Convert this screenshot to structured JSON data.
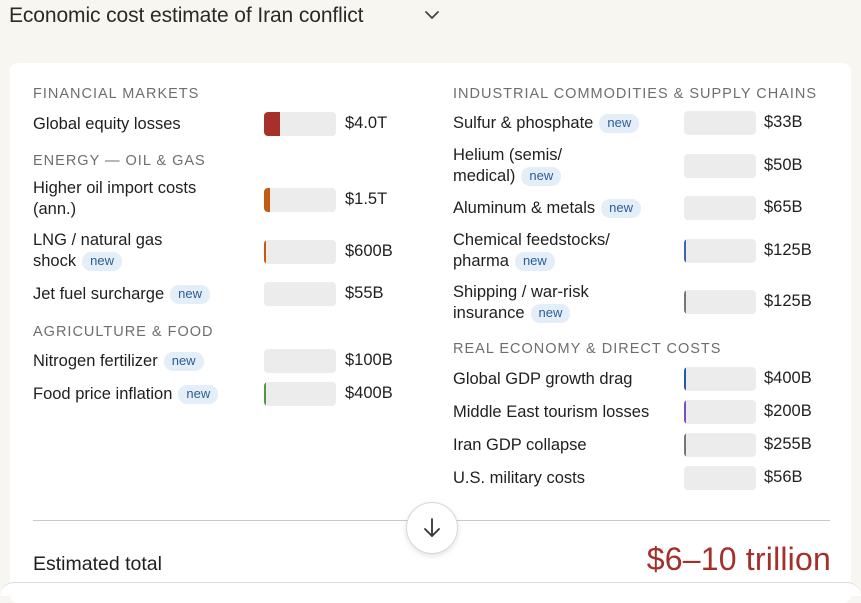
{
  "header": {
    "title": "Economic cost estimate of Iran conflict"
  },
  "left_sections": [
    {
      "title": "FINANCIAL MARKETS",
      "items": [
        {
          "label": "Global equity losses",
          "value": "$4.0T",
          "fill_pct": 22,
          "color": "#a8302a"
        }
      ]
    },
    {
      "title": "ENERGY — OIL & GAS",
      "items": [
        {
          "label": "Higher oil import costs",
          "label2": "(ann.)",
          "value": "$1.5T",
          "fill_pct": 9,
          "color": "#c45a12"
        },
        {
          "label": "LNG / natural gas",
          "label2": "shock",
          "badge": "new",
          "value": "$600B",
          "fill_pct": 3,
          "color": "#c45a12"
        },
        {
          "label": "Jet fuel surcharge",
          "badge": "new",
          "value": "$55B",
          "fill_pct": 0,
          "color": "#c45a12"
        }
      ]
    },
    {
      "title": "AGRICULTURE & FOOD",
      "items": [
        {
          "label": "Nitrogen fertilizer",
          "badge": "new",
          "value": "$100B",
          "fill_pct": 0,
          "color": "#4f9a3a"
        },
        {
          "label": "Food price inflation",
          "badge": "new",
          "value": "$400B",
          "fill_pct": 2,
          "color": "#4f9a3a"
        }
      ]
    }
  ],
  "right_sections": [
    {
      "title": "INDUSTRIAL COMMODITIES & SUPPLY CHAINS",
      "items": [
        {
          "label": "Sulfur & phosphate",
          "badge": "new",
          "value": "$33B",
          "fill_pct": 0,
          "color": "#3b66b3"
        },
        {
          "label": "Helium (semis/",
          "label2": "medical)",
          "badge": "new",
          "value": "$50B",
          "fill_pct": 0,
          "color": "#3b66b3"
        },
        {
          "label": "Aluminum & metals",
          "badge": "new",
          "value": "$65B",
          "fill_pct": 0,
          "color": "#3b66b3"
        },
        {
          "label": "Chemical feedstocks/",
          "label2": "pharma",
          "badge": "new",
          "value": "$125B",
          "fill_pct": 1,
          "color": "#3b66b3"
        },
        {
          "label": "Shipping / war-risk",
          "label2": "insurance",
          "badge": "new",
          "value": "$125B",
          "fill_pct": 1,
          "color": "#777777"
        }
      ]
    },
    {
      "title": "REAL ECONOMY & DIRECT COSTS",
      "items": [
        {
          "label": "Global GDP growth drag",
          "value": "$400B",
          "fill_pct": 2,
          "color": "#2458a8"
        },
        {
          "label": "Middle East tourism losses",
          "value": "$200B",
          "fill_pct": 1,
          "color": "#7a4fc0"
        },
        {
          "label": "Iran GDP collapse",
          "value": "$255B",
          "fill_pct": 1,
          "color": "#777777"
        },
        {
          "label": "U.S. military costs",
          "value": "$56B",
          "fill_pct": 0,
          "color": "#777777"
        }
      ]
    }
  ],
  "total": {
    "label": "Estimated total",
    "value": "$6–10 trillion"
  }
}
